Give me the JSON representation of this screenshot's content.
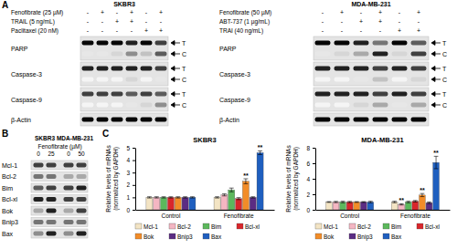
{
  "panel_a": {
    "label": "A",
    "blots": [
      {
        "title": "SKBR3",
        "treatments": [
          {
            "name": "Fenofibrate (25 µM)",
            "signs": [
              "-",
              "+",
              "-",
              "+",
              "-",
              "+"
            ]
          },
          {
            "name": "TRAIL (5 ng/mL)",
            "signs": [
              "-",
              "-",
              "+",
              "+",
              "-",
              "-"
            ]
          },
          {
            "name": "Paclitaxel (20 nM)",
            "signs": [
              "-",
              "-",
              "-",
              "-",
              "+",
              "+"
            ]
          }
        ],
        "rows": [
          {
            "name": "PARP",
            "bands": [
              {
                "marker": "T",
                "intensity": [
                  1,
                  1,
                  1,
                  0.9,
                  1,
                  0.8
                ]
              },
              {
                "marker": "C",
                "intensity": [
                  0.1,
                  0.1,
                  0.2,
                  0.5,
                  0.3,
                  0.7
                ]
              }
            ]
          },
          {
            "name": "Caspase-3",
            "bands": [
              {
                "marker": "T",
                "intensity": [
                  0.9,
                  0.9,
                  0.9,
                  0.9,
                  0.9,
                  0.8
                ]
              },
              {
                "marker": "C",
                "intensity": [
                  0,
                  0,
                  0,
                  0.2,
                  0,
                  0.1
                ]
              }
            ]
          },
          {
            "name": "Caspase-9",
            "bands": [
              {
                "marker": "T",
                "intensity": [
                  0.8,
                  0.8,
                  0.8,
                  0.7,
                  0.8,
                  0.7
                ]
              },
              {
                "marker": "C",
                "intensity": [
                  0,
                  0,
                  0,
                  0.1,
                  0.2,
                  0.5
                ]
              }
            ]
          },
          {
            "name": "β-Actin",
            "bands": [
              {
                "marker": null,
                "intensity": [
                  1,
                  1,
                  1,
                  1,
                  1,
                  1
                ]
              }
            ]
          }
        ]
      },
      {
        "title": "MDA-MB-231",
        "treatments": [
          {
            "name": "Fenofibrate (50 µM)",
            "signs": [
              "-",
              "+",
              "-",
              "+",
              "-",
              "+"
            ]
          },
          {
            "name": "ABT-737 (1 µg/mL)",
            "signs": [
              "-",
              "-",
              "+",
              "+",
              "-",
              "-"
            ]
          },
          {
            "name": "TRAI (40 ng/mL)",
            "signs": [
              "-",
              "-",
              "-",
              "-",
              "+",
              "+"
            ]
          }
        ],
        "rows": [
          {
            "name": "PARP",
            "bands": [
              {
                "marker": "T",
                "intensity": [
                  1,
                  1,
                  0.9,
                  0.6,
                  1,
                  0.7
                ]
              },
              {
                "marker": "C",
                "intensity": [
                  0.1,
                  0.2,
                  0.4,
                  0.9,
                  0.2,
                  0.8
                ]
              }
            ]
          },
          {
            "name": "Caspase-3",
            "bands": [
              {
                "marker": "T",
                "intensity": [
                  0.9,
                  0.9,
                  0.9,
                  0.8,
                  0.9,
                  0.8
                ]
              },
              {
                "marker": "C",
                "intensity": [
                  0,
                  0,
                  0.1,
                  0.3,
                  0,
                  0.2
                ]
              }
            ]
          },
          {
            "name": "Caspase-9",
            "bands": [
              {
                "marker": "T",
                "intensity": [
                  0.9,
                  0.9,
                  0.9,
                  0.8,
                  0.9,
                  0.8
                ]
              },
              {
                "marker": "C",
                "intensity": [
                  0,
                  0,
                  0.2,
                  0.4,
                  0.1,
                  0.4
                ]
              }
            ]
          },
          {
            "name": "β-Actin",
            "bands": [
              {
                "marker": null,
                "intensity": [
                  1,
                  1,
                  1,
                  1,
                  1,
                  1
                ]
              }
            ]
          }
        ]
      }
    ]
  },
  "panel_b": {
    "label": "B",
    "cell_lines": [
      "SKBR3",
      "MDA-MB-231"
    ],
    "treatment": "Fenofibrate (µM)",
    "doses": [
      0,
      25,
      0,
      50
    ],
    "rows": [
      {
        "name": "Mcl-1",
        "intensity": [
          0.8,
          0.8,
          0.8,
          0.8
        ]
      },
      {
        "name": "Bcl-2",
        "intensity": [
          0.6,
          0.6,
          0.4,
          0.4
        ]
      },
      {
        "name": "Bim",
        "intensity": [
          0.7,
          0.8,
          0.8,
          0.9
        ]
      },
      {
        "name": "Bcl-xl",
        "intensity": [
          0.9,
          0.9,
          0.8,
          0.8
        ]
      },
      {
        "name": "Bok",
        "intensity": [
          0.4,
          0.9,
          0.4,
          0.8
        ]
      },
      {
        "name": "Bnip3",
        "intensity": [
          0.6,
          0.6,
          0.6,
          0.6
        ]
      },
      {
        "name": "Bax",
        "intensity": [
          0.5,
          0.9,
          0.5,
          0.9
        ]
      }
    ]
  },
  "panel_c": {
    "label": "C"
  },
  "chart_data": [
    {
      "type": "bar",
      "title": "SKBR3",
      "y_label": [
        "Relative levels of mRNAs",
        "(normalized by GAPDH)"
      ],
      "categories": [
        "Control",
        "Fenofibrate"
      ],
      "ylim": [
        0,
        5
      ],
      "yticks": [
        0,
        1,
        2,
        3,
        4,
        5
      ],
      "grid": false,
      "legend": "bottom",
      "series": [
        {
          "name": "Mcl-1",
          "color": "#f3e4c4",
          "values": [
            1,
            1.0
          ],
          "errors": [
            0.05,
            0.05
          ]
        },
        {
          "name": "Bcl-2",
          "color": "#f4b6c2",
          "values": [
            1,
            1.2
          ],
          "errors": [
            0.05,
            0.08
          ]
        },
        {
          "name": "Bim",
          "color": "#5cb85c",
          "values": [
            1,
            1.6
          ],
          "errors": [
            0.05,
            0.15
          ]
        },
        {
          "name": "Bcl-xl",
          "color": "#d9262b",
          "values": [
            1,
            0.9
          ],
          "errors": [
            0.05,
            0.08
          ]
        },
        {
          "name": "Bok",
          "color": "#f28c28",
          "values": [
            1,
            2.3
          ],
          "errors": [
            0.05,
            0.2
          ],
          "annotations": [
            null,
            "**"
          ]
        },
        {
          "name": "Bnip3",
          "color": "#5b2c83",
          "values": [
            1,
            1.0
          ],
          "errors": [
            0.05,
            0.05
          ]
        },
        {
          "name": "Bax",
          "color": "#1f5fbf",
          "values": [
            1,
            4.6
          ],
          "errors": [
            0.05,
            0.15
          ],
          "annotations": [
            null,
            "**"
          ]
        }
      ]
    },
    {
      "type": "bar",
      "title": "MDA-MB-231",
      "y_label": [
        "Relative levels of mRNAs",
        "(normalized by GAPDH)"
      ],
      "categories": [
        "Control",
        "Fenofibrate"
      ],
      "ylim": [
        0,
        8
      ],
      "yticks": [
        0,
        2,
        4,
        6,
        8
      ],
      "grid": false,
      "legend": "bottom",
      "series": [
        {
          "name": "Mcl-1",
          "color": "#f3e4c4",
          "values": [
            1,
            1.0
          ],
          "errors": [
            0.05,
            0.1
          ]
        },
        {
          "name": "Bcl-2",
          "color": "#f4b6c2",
          "values": [
            1,
            0.7
          ],
          "errors": [
            0.08,
            0.08
          ],
          "annotations": [
            null,
            "**"
          ]
        },
        {
          "name": "Bim",
          "color": "#5cb85c",
          "values": [
            1,
            1.0
          ],
          "errors": [
            0.1,
            0.1
          ]
        },
        {
          "name": "Bcl-xl",
          "color": "#d9262b",
          "values": [
            1,
            1.1
          ],
          "errors": [
            0.08,
            0.1
          ]
        },
        {
          "name": "Bok",
          "color": "#f28c28",
          "values": [
            1,
            1.9
          ],
          "errors": [
            0.05,
            0.2
          ],
          "annotations": [
            null,
            "**"
          ]
        },
        {
          "name": "Bnip3",
          "color": "#5b2c83",
          "values": [
            1,
            0.9
          ],
          "errors": [
            0.05,
            0.1
          ]
        },
        {
          "name": "Bax",
          "color": "#1f5fbf",
          "values": [
            1,
            6.1
          ],
          "errors": [
            0.1,
            0.8
          ],
          "annotations": [
            null,
            "**"
          ]
        }
      ]
    }
  ]
}
